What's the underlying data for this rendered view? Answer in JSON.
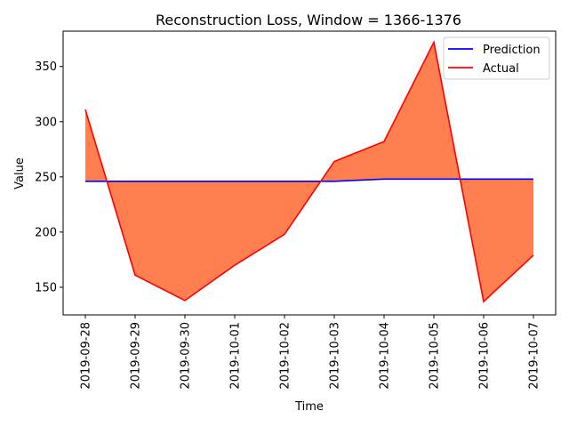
{
  "chart_data": {
    "type": "line",
    "title": "Reconstruction Loss, Window = 1366-1376",
    "xlabel": "Time",
    "ylabel": "Value",
    "x": [
      "2019-09-28",
      "2019-09-29",
      "2019-09-30",
      "2019-10-01",
      "2019-10-02",
      "2019-10-03",
      "2019-10-04",
      "2019-10-05",
      "2019-10-06",
      "2019-10-07"
    ],
    "ylim": [
      125,
      382
    ],
    "yticks": [
      150,
      200,
      250,
      300,
      350
    ],
    "grid": false,
    "legend_position": "top-right",
    "series": [
      {
        "name": "Prediction",
        "color": "#0000ff",
        "values": [
          246,
          246,
          246,
          246,
          246,
          246,
          248,
          248,
          248,
          248
        ]
      },
      {
        "name": "Actual",
        "color": "#ff0000",
        "values": [
          311,
          161,
          138,
          170,
          198,
          264,
          282,
          372,
          137,
          179
        ]
      }
    ],
    "fill_between": {
      "color": "#ff7f50"
    }
  }
}
